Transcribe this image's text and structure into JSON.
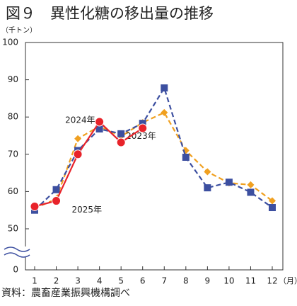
{
  "chart_data": {
    "type": "line",
    "title": "図９　異性化糖の移出量の推移",
    "y_label": "（千トン）",
    "x_label": "（月）",
    "source": "資料：農畜産業振興機構調べ",
    "categories": [
      "1",
      "2",
      "3",
      "4",
      "5",
      "6",
      "7",
      "8",
      "9",
      "10",
      "11",
      "12"
    ],
    "ylim": [
      0,
      100
    ],
    "axis_break": [
      0,
      50
    ],
    "yticks": [
      0,
      50,
      60,
      70,
      80,
      90,
      100
    ],
    "grid": false,
    "series": [
      {
        "name": "2023年",
        "color": "#f0a020",
        "marker": "diamond",
        "dash": true,
        "values": [
          55.5,
          58,
          74.2,
          77.5,
          74.8,
          78.5,
          81.2,
          71,
          65.3,
          62.3,
          61.8,
          57.5
        ]
      },
      {
        "name": "2024年",
        "color": "#3c4fa0",
        "marker": "square",
        "dash": true,
        "values": [
          55,
          60.5,
          71,
          76.8,
          75.5,
          78.3,
          87.8,
          69.2,
          61,
          62.5,
          59.8,
          55.7
        ]
      },
      {
        "name": "2025年",
        "color": "#e8232a",
        "marker": "circle",
        "dash": false,
        "values": [
          56,
          57.5,
          70,
          78.7,
          73.2,
          77,
          null,
          null,
          null,
          null,
          null,
          null
        ]
      }
    ]
  }
}
